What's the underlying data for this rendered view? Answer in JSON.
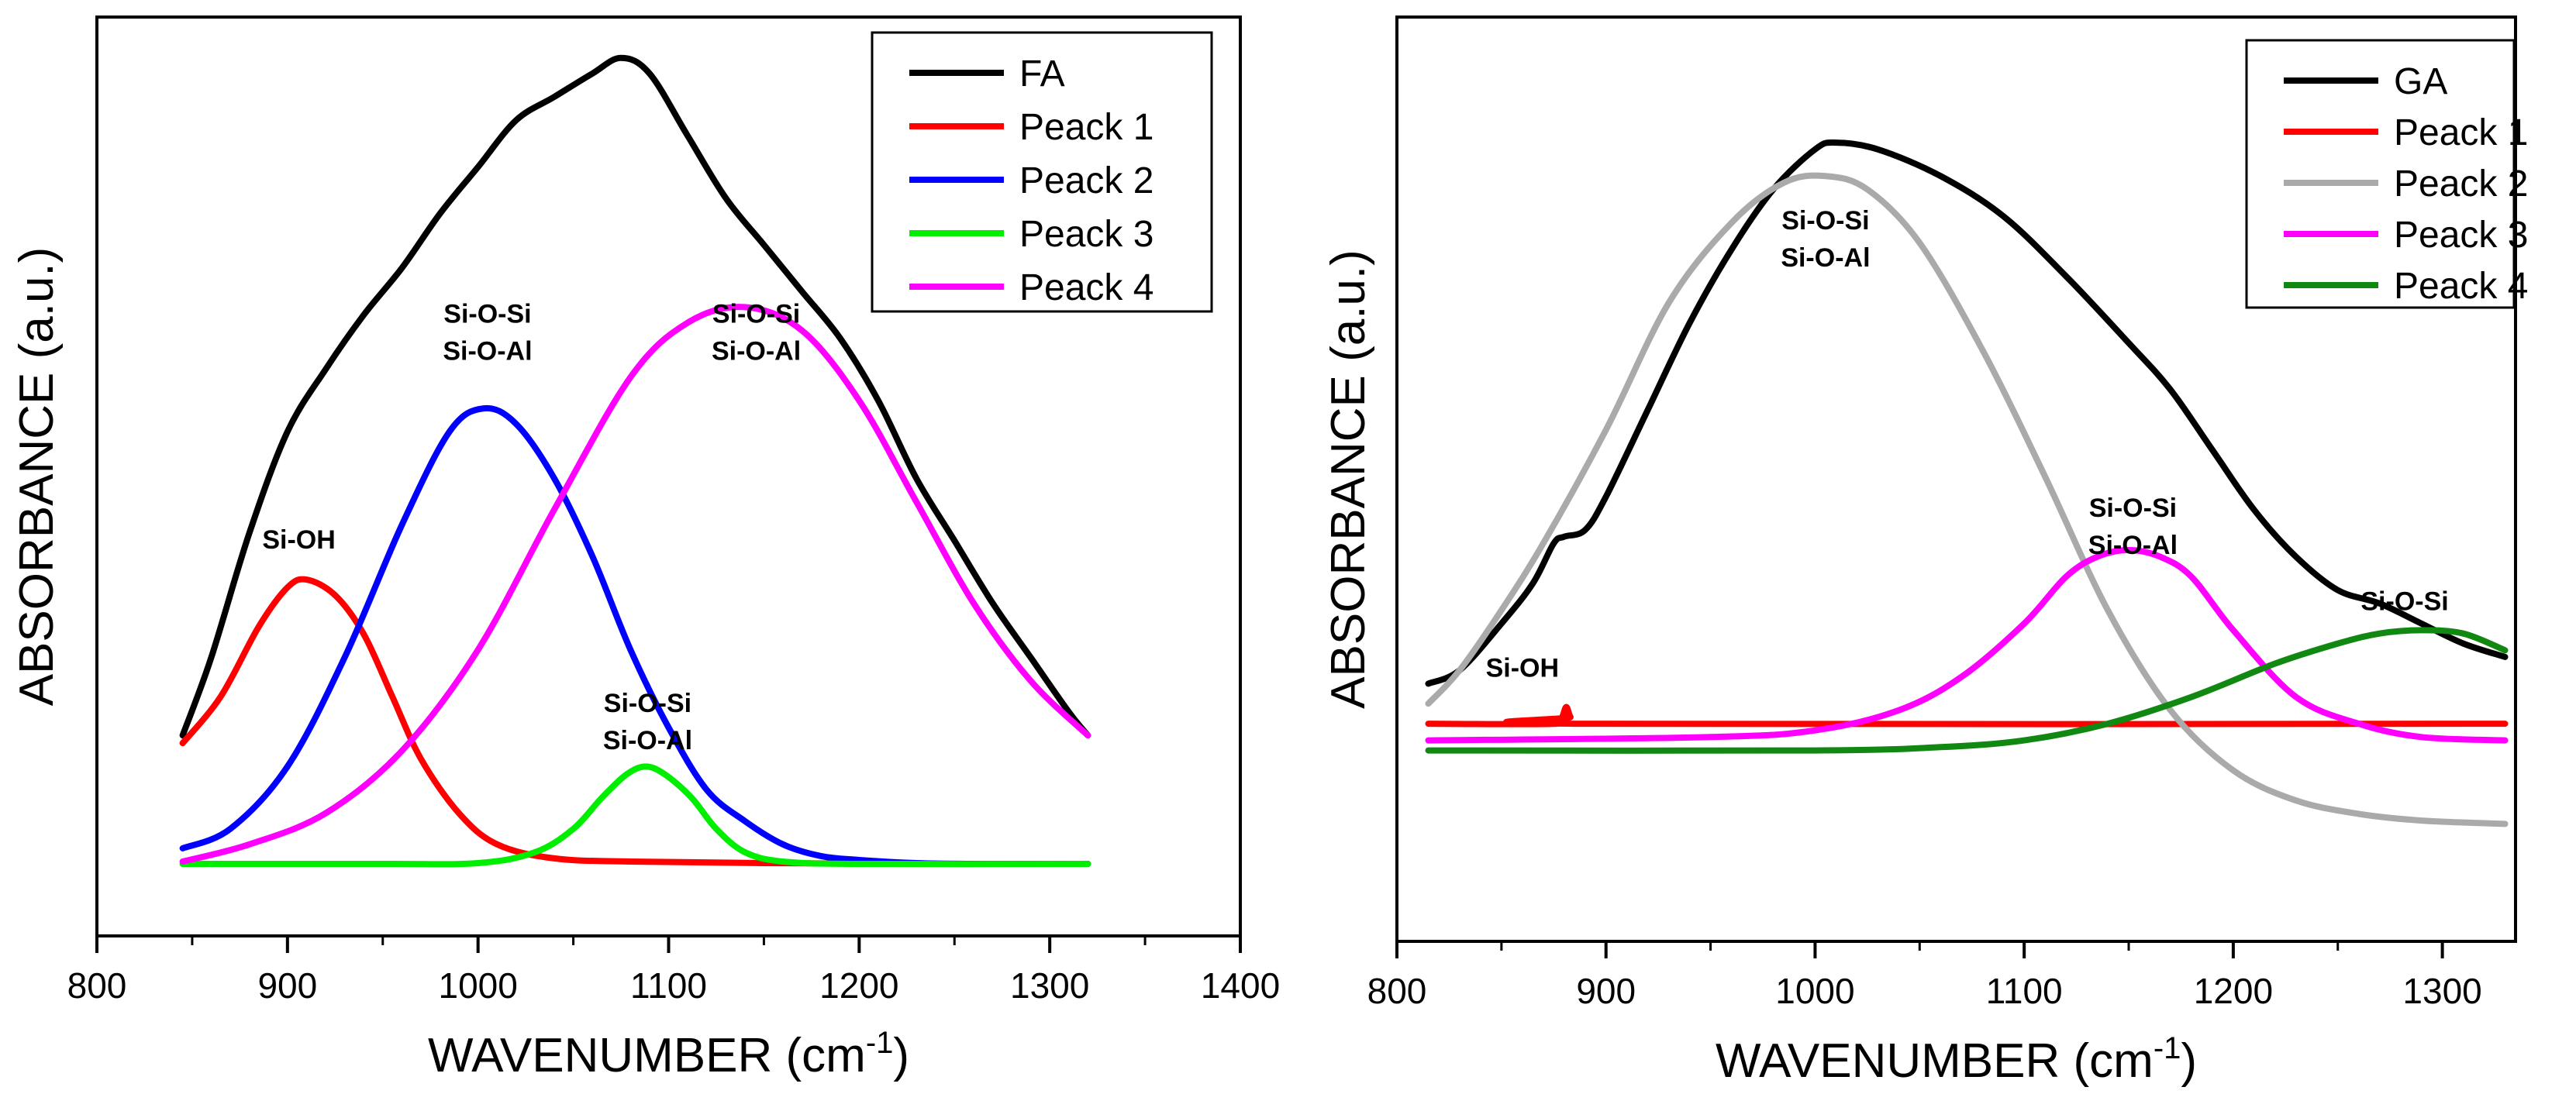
{
  "chart_data": [
    {
      "type": "line",
      "title": "",
      "xlabel": "WAVENUMBER (cm",
      "xlabel_sup": "-1",
      "xlabel_close": ")",
      "ylabel": "ABSORBANCE (a.u.)",
      "xlim": [
        800,
        1400
      ],
      "ylim": [
        0,
        1
      ],
      "xticks": [
        800,
        900,
        1000,
        1100,
        1200,
        1300,
        1400
      ],
      "grid": false,
      "legend_position": "top-right",
      "legend": [
        {
          "name": "FA",
          "color": "#000000"
        },
        {
          "name": "Peack 1",
          "color": "#ff0000"
        },
        {
          "name": "Peack 2",
          "color": "#0000ff"
        },
        {
          "name": "Peack 3",
          "color": "#00ee00"
        },
        {
          "name": "Peack 4",
          "color": "#ff00ff"
        }
      ],
      "series": [
        {
          "name": "FA",
          "color": "#000000",
          "x": [
            845,
            860,
            880,
            900,
            920,
            940,
            960,
            980,
            1000,
            1020,
            1040,
            1060,
            1075,
            1090,
            1110,
            1130,
            1150,
            1170,
            1190,
            1210,
            1230,
            1250,
            1270,
            1290,
            1310,
            1320
          ],
          "y": [
            0.17,
            0.27,
            0.43,
            0.56,
            0.64,
            0.71,
            0.77,
            0.84,
            0.9,
            0.96,
            0.99,
            1.02,
            1.04,
            1.02,
            0.94,
            0.86,
            0.8,
            0.74,
            0.68,
            0.6,
            0.5,
            0.42,
            0.34,
            0.27,
            0.2,
            0.17
          ]
        },
        {
          "name": "Peack 1",
          "color": "#ff0000",
          "x": [
            845,
            865,
            885,
            900,
            910,
            925,
            940,
            955,
            970,
            990,
            1010,
            1040,
            1080,
            1150,
            1250,
            1320
          ],
          "y": [
            0.16,
            0.22,
            0.31,
            0.36,
            0.37,
            0.35,
            0.3,
            0.22,
            0.14,
            0.07,
            0.03,
            0.012,
            0.008,
            0.006,
            0.005,
            0.005
          ]
        },
        {
          "name": "Peack 2",
          "color": "#0000ff",
          "x": [
            845,
            870,
            900,
            930,
            960,
            985,
            1003,
            1020,
            1040,
            1060,
            1080,
            1100,
            1120,
            1140,
            1160,
            1180,
            1200,
            1230,
            1260,
            1320
          ],
          "y": [
            0.025,
            0.05,
            0.13,
            0.27,
            0.44,
            0.56,
            0.59,
            0.57,
            0.5,
            0.4,
            0.28,
            0.18,
            0.1,
            0.06,
            0.03,
            0.015,
            0.01,
            0.006,
            0.005,
            0.005
          ]
        },
        {
          "name": "Peack 3",
          "color": "#00ee00",
          "x": [
            845,
            950,
            1000,
            1030,
            1050,
            1065,
            1078,
            1088,
            1098,
            1112,
            1125,
            1140,
            1160,
            1200,
            1320
          ],
          "y": [
            0.005,
            0.005,
            0.006,
            0.02,
            0.05,
            0.09,
            0.12,
            0.13,
            0.12,
            0.09,
            0.05,
            0.02,
            0.008,
            0.005,
            0.005
          ]
        },
        {
          "name": "Peack 4",
          "color": "#ff00ff",
          "x": [
            845,
            880,
            920,
            960,
            1000,
            1040,
            1080,
            1110,
            1140,
            1170,
            1200,
            1230,
            1260,
            1290,
            1320
          ],
          "y": [
            0.008,
            0.03,
            0.07,
            0.15,
            0.28,
            0.46,
            0.63,
            0.7,
            0.72,
            0.69,
            0.6,
            0.47,
            0.34,
            0.24,
            0.17
          ]
        }
      ],
      "annotations": [
        {
          "lines": [
            "Si-OH"
          ],
          "x": 906,
          "y": 0.41
        },
        {
          "lines": [
            "Si-O-Si",
            "Si-O-Al"
          ],
          "x": 1005,
          "y": 0.7
        },
        {
          "lines": [
            "Si-O-Si",
            "Si-O-Al"
          ],
          "x": 1089,
          "y": 0.2
        },
        {
          "lines": [
            "Si-O-Si",
            "Si-O-Al"
          ],
          "x": 1146,
          "y": 0.7
        }
      ]
    },
    {
      "type": "line",
      "title": "",
      "xlabel": "WAVENUMBER (cm",
      "xlabel_sup": "-1",
      "xlabel_close": ")",
      "ylabel": "ABSORBANCE (a.u.)",
      "xlim": [
        800,
        1335
      ],
      "ylim": [
        0,
        1
      ],
      "xticks": [
        800,
        900,
        1000,
        1100,
        1200,
        1300
      ],
      "grid": false,
      "legend_position": "top-right",
      "legend": [
        {
          "name": "GA",
          "color": "#000000"
        },
        {
          "name": "Peack 1",
          "color": "#ff0000"
        },
        {
          "name": "Peack 2",
          "color": "#aaaaaa"
        },
        {
          "name": "Peack 3",
          "color": "#ff00ff"
        },
        {
          "name": "Peack 4",
          "color": "#118811"
        }
      ],
      "series": [
        {
          "name": "GA",
          "color": "#000000",
          "x": [
            815,
            830,
            850,
            865,
            875,
            880,
            890,
            900,
            920,
            940,
            960,
            980,
            1000,
            1010,
            1030,
            1060,
            1090,
            1120,
            1150,
            1170,
            1190,
            1210,
            1230,
            1250,
            1270,
            1290,
            1310,
            1330
          ],
          "y": [
            0.22,
            0.24,
            0.31,
            0.37,
            0.43,
            0.44,
            0.45,
            0.5,
            0.63,
            0.76,
            0.87,
            0.96,
            1.02,
            1.03,
            1.02,
            0.98,
            0.92,
            0.83,
            0.73,
            0.66,
            0.57,
            0.48,
            0.41,
            0.36,
            0.34,
            0.31,
            0.28,
            0.26
          ]
        },
        {
          "name": "Peack 1",
          "color": "#ff0000",
          "x": [
            815,
            876,
            879,
            881,
            883,
            886,
            1330
          ],
          "y": [
            0.16,
            0.16,
            0.17,
            0.185,
            0.17,
            0.16,
            0.16
          ]
        },
        {
          "name": "Peack 2",
          "color": "#aaaaaa",
          "x": [
            815,
            830,
            850,
            870,
            900,
            930,
            960,
            985,
            1005,
            1025,
            1050,
            1080,
            1110,
            1140,
            1170,
            1200,
            1230,
            1260,
            1290,
            1330
          ],
          "y": [
            0.19,
            0.24,
            0.33,
            0.43,
            0.6,
            0.79,
            0.91,
            0.97,
            0.98,
            0.96,
            0.88,
            0.72,
            0.53,
            0.33,
            0.18,
            0.09,
            0.045,
            0.025,
            0.015,
            0.01
          ]
        },
        {
          "name": "Peack 3",
          "color": "#ff00ff",
          "x": [
            815,
            950,
            1000,
            1040,
            1070,
            1100,
            1120,
            1135,
            1150,
            1165,
            1180,
            1200,
            1230,
            1260,
            1290,
            1330
          ],
          "y": [
            0.135,
            0.14,
            0.15,
            0.18,
            0.23,
            0.31,
            0.38,
            0.41,
            0.42,
            0.41,
            0.38,
            0.3,
            0.2,
            0.16,
            0.14,
            0.135
          ]
        },
        {
          "name": "Peack 4",
          "color": "#118811",
          "x": [
            815,
            1000,
            1060,
            1100,
            1140,
            1180,
            1220,
            1250,
            1270,
            1290,
            1310,
            1330
          ],
          "y": [
            0.12,
            0.12,
            0.125,
            0.135,
            0.16,
            0.2,
            0.25,
            0.28,
            0.295,
            0.3,
            0.295,
            0.27
          ]
        }
      ],
      "annotations": [
        {
          "lines": [
            "Si-OH"
          ],
          "x": 860,
          "y": 0.23
        },
        {
          "lines": [
            "Si-O-Si",
            "Si-O-Al"
          ],
          "x": 1005,
          "y": 0.9
        },
        {
          "lines": [
            "Si-O-Si",
            "Si-O-Al"
          ],
          "x": 1152,
          "y": 0.47
        },
        {
          "lines": [
            "Si-O-Si"
          ],
          "x": 1282,
          "y": 0.33
        }
      ]
    }
  ]
}
